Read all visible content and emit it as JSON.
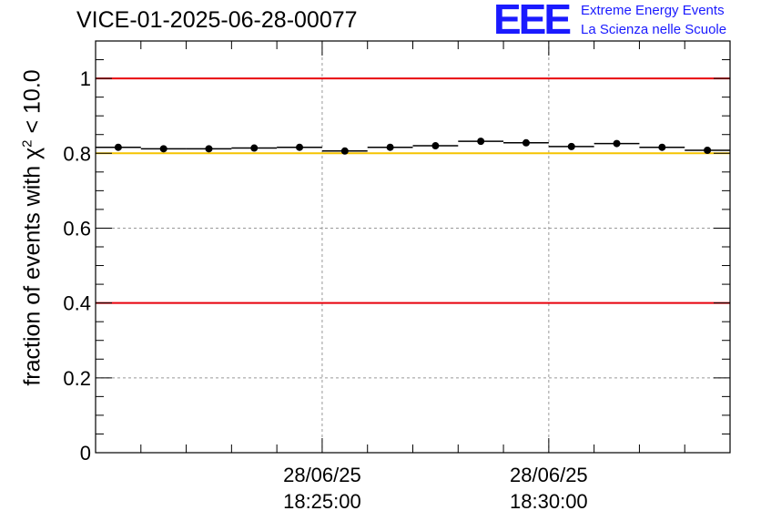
{
  "header": {
    "title": "VICE-01-2025-06-28-00077",
    "logo_text": "EEE",
    "logo_line1": "Extreme Energy Events",
    "logo_line2": "La Scienza nelle Scuole"
  },
  "axis": {
    "y_label_prefix": "fraction of events with ",
    "y_label_chi": "χ",
    "y_label_exp": "2",
    "y_label_suffix": " < 10.0"
  },
  "colors": {
    "threshold_red": "#e8000b",
    "threshold_yellow": "#f5c400",
    "points": "#000000",
    "grid": "#999999"
  },
  "chart_data": {
    "type": "scatter",
    "title": "VICE-01-2025-06-28-00077",
    "xlabel": "",
    "ylabel": "fraction of events with χ² < 10.0",
    "x_unit": "time (28/06/25)",
    "x": [
      "18:20:30",
      "18:21:30",
      "18:22:30",
      "18:23:30",
      "18:24:30",
      "18:25:30",
      "18:26:30",
      "18:27:30",
      "18:28:30",
      "18:29:30",
      "18:30:30",
      "18:31:30",
      "18:32:30",
      "18:33:30"
    ],
    "values": [
      0.816,
      0.812,
      0.812,
      0.814,
      0.816,
      0.806,
      0.816,
      0.82,
      0.832,
      0.828,
      0.818,
      0.826,
      0.816,
      0.808
    ],
    "xlim": [
      "18:20:00",
      "18:34:00"
    ],
    "ylim": [
      0,
      1.1
    ],
    "y_ticks": [
      0,
      0.2,
      0.4,
      0.6,
      0.8,
      1
    ],
    "y_tick_labels": [
      "0",
      "0.2",
      "0.4",
      "0.6",
      "0.8",
      "1"
    ],
    "x_ticks": [
      {
        "date": "28/06/25",
        "time": "18:25:00",
        "minute": 5
      },
      {
        "date": "28/06/25",
        "time": "18:30:00",
        "minute": 10
      }
    ],
    "hlines": [
      {
        "y": 1.0,
        "color": "red"
      },
      {
        "y": 0.8,
        "color": "yellow"
      },
      {
        "y": 0.4,
        "color": "red"
      }
    ],
    "grid": true,
    "legend": "none"
  }
}
